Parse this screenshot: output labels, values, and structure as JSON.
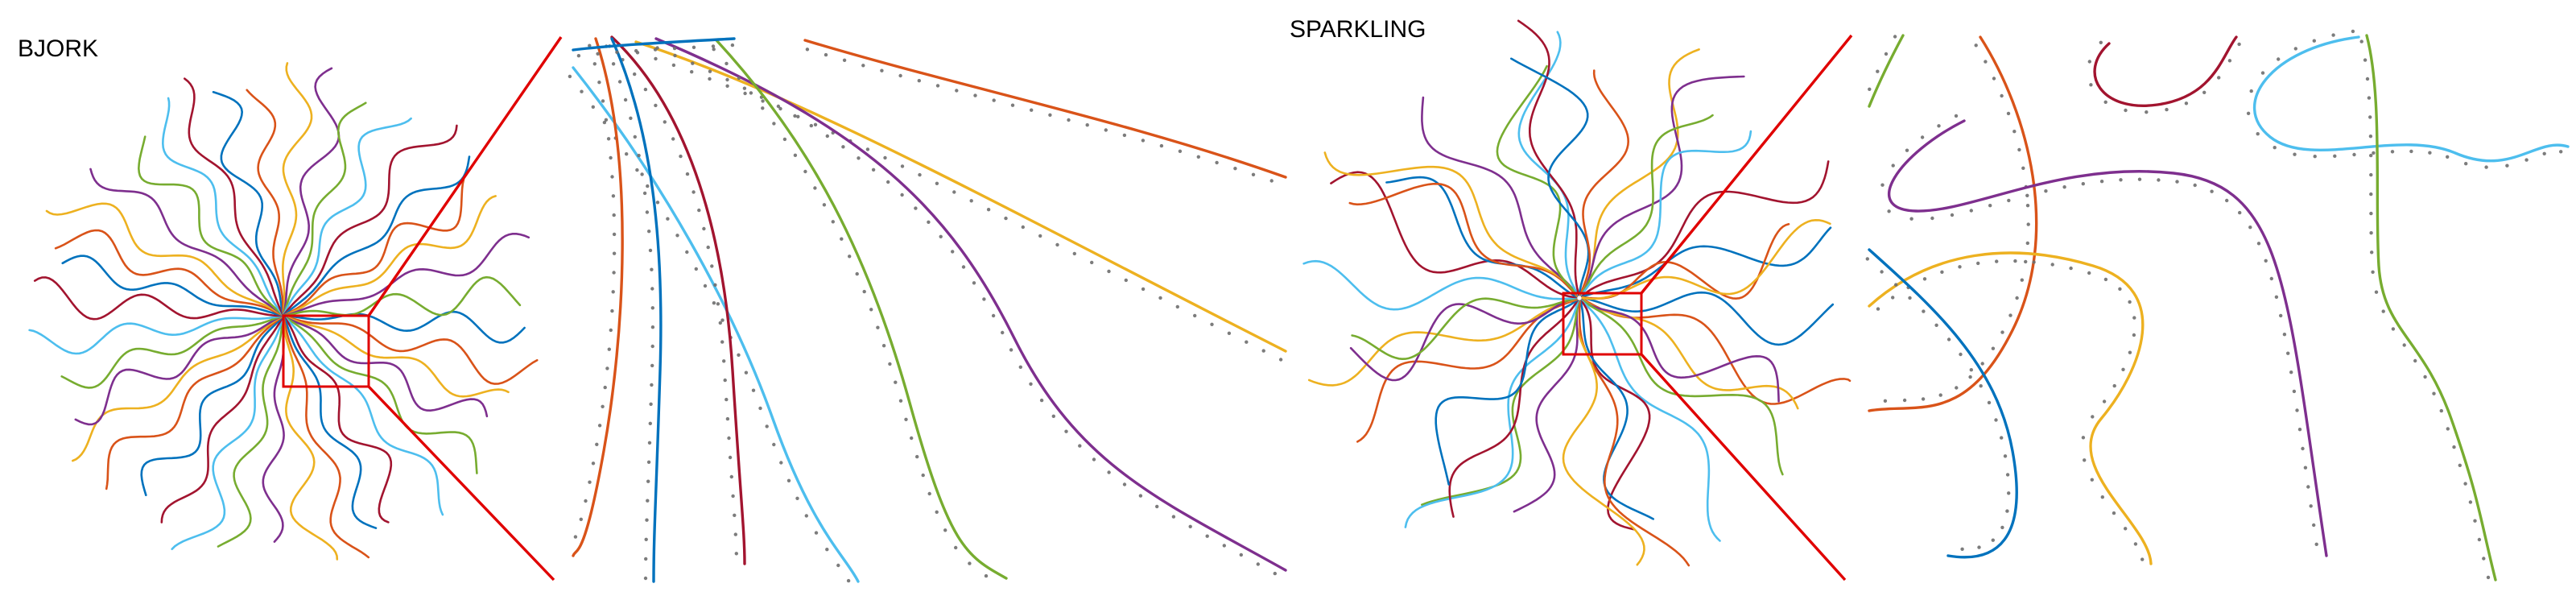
{
  "panels": [
    {
      "title": "BJORK"
    },
    {
      "title": "SPARKLING"
    }
  ],
  "palette": [
    "#0072BD",
    "#D95319",
    "#EDB120",
    "#7E2F8E",
    "#77AC30",
    "#4DBEEE",
    "#A2142F"
  ],
  "zoom_box_color": "#E00000",
  "reference_dot_color": "#6E6E6E",
  "bjork": {
    "spokes": 40,
    "zoomed_trajectories": 8
  },
  "sparkling": {
    "spokes": 38,
    "zoomed_trajectories": 8
  }
}
